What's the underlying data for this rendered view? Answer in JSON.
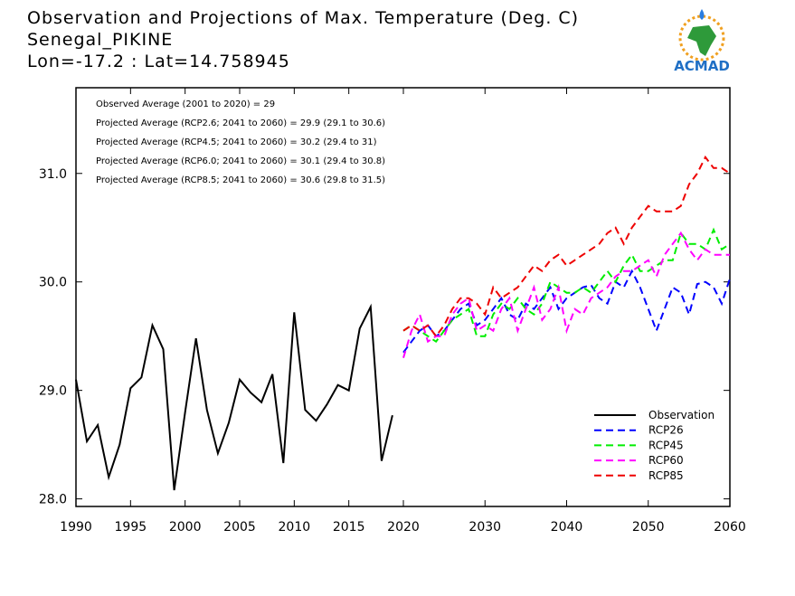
{
  "chart_data": {
    "type": "line",
    "title": "Observation and Projections of Max. Temperature (Deg. C)",
    "subtitle": "Senegal_PIKINE",
    "location": "Lon=-17.2 : Lat=14.758945",
    "annotations": [
      "Observed Average (2001 to 2020) = 29",
      "Projected Average (RCP2.6; 2041 to 2060) = 29.9 (29.1 to 30.6)",
      "Projected Average (RCP4.5; 2041 to 2060) = 30.2 (29.4 to 31)",
      "Projected Average (RCP6.0; 2041 to 2060) = 30.1 (29.4 to 30.8)",
      "Projected Average (RCP8.5; 2041 to 2060) = 30.6 (29.8 to 31.5)"
    ],
    "logo_text": "ACMAD",
    "x": [
      1990,
      1991,
      1992,
      1993,
      1994,
      1995,
      1996,
      1997,
      1998,
      1999,
      2000,
      2001,
      2002,
      2003,
      2004,
      2005,
      2006,
      2007,
      2008,
      2009,
      2010,
      2011,
      2012,
      2013,
      2014,
      2015,
      2016,
      2017,
      2018,
      2019,
      2020,
      2021,
      2022,
      2023,
      2024,
      2025,
      2026,
      2027,
      2028,
      2029,
      2030,
      2031,
      2032,
      2033,
      2034,
      2035,
      2036,
      2037,
      2038,
      2039,
      2040,
      2041,
      2042,
      2043,
      2044,
      2045,
      2046,
      2047,
      2048,
      2049,
      2050,
      2051,
      2052,
      2053,
      2054,
      2055,
      2056,
      2057,
      2058,
      2059,
      2060
    ],
    "series": [
      {
        "name": "Observation",
        "color": "#000000",
        "dashed": false,
        "values": [
          29.1,
          28.53,
          28.68,
          28.2,
          28.5,
          29.02,
          29.12,
          29.6,
          29.38,
          28.08,
          28.8,
          29.48,
          28.82,
          28.42,
          28.7,
          29.1,
          28.98,
          28.89,
          29.15,
          28.33,
          29.72,
          28.82,
          28.72,
          28.87,
          29.05,
          29.0,
          29.57,
          29.77,
          28.35,
          28.77,
          null,
          null,
          null,
          null,
          null,
          null,
          null,
          null,
          null,
          null,
          null,
          null,
          null,
          null,
          null,
          null,
          null,
          null,
          null,
          null,
          null,
          null,
          null,
          null,
          null,
          null,
          null,
          null,
          null,
          null,
          null,
          null,
          null,
          null,
          null,
          null,
          null,
          null,
          null,
          null,
          null
        ]
      },
      {
        "name": "RCP26",
        "color": "#0000ff",
        "dashed": true,
        "values": [
          null,
          null,
          null,
          null,
          null,
          null,
          null,
          null,
          null,
          null,
          null,
          null,
          null,
          null,
          null,
          null,
          null,
          null,
          null,
          null,
          null,
          null,
          null,
          null,
          null,
          null,
          null,
          null,
          null,
          null,
          29.35,
          29.45,
          29.55,
          29.6,
          29.5,
          29.55,
          29.65,
          29.75,
          29.8,
          29.6,
          29.65,
          29.75,
          29.85,
          29.7,
          29.65,
          29.8,
          29.75,
          29.85,
          29.95,
          29.75,
          29.85,
          29.9,
          29.95,
          29.97,
          29.85,
          29.8,
          30.0,
          29.95,
          30.1,
          29.95,
          29.75,
          29.55,
          29.75,
          29.95,
          29.9,
          29.7,
          29.98,
          30.0,
          29.95,
          29.8,
          30.03
        ]
      },
      {
        "name": "RCP45",
        "color": "#00ee00",
        "dashed": true,
        "values": [
          null,
          null,
          null,
          null,
          null,
          null,
          null,
          null,
          null,
          null,
          null,
          null,
          null,
          null,
          null,
          null,
          null,
          null,
          null,
          null,
          null,
          null,
          null,
          null,
          null,
          null,
          null,
          null,
          null,
          null,
          29.55,
          29.6,
          29.55,
          29.5,
          29.45,
          29.55,
          29.65,
          29.7,
          29.75,
          29.5,
          29.5,
          29.7,
          29.8,
          29.75,
          29.85,
          29.75,
          29.7,
          29.8,
          30.0,
          29.95,
          29.9,
          29.9,
          29.95,
          29.9,
          30.0,
          30.1,
          30.0,
          30.15,
          30.25,
          30.1,
          30.1,
          30.15,
          30.2,
          30.2,
          30.45,
          30.35,
          30.35,
          30.3,
          30.48,
          30.3,
          30.35
        ]
      },
      {
        "name": "RCP60",
        "color": "#ff00ff",
        "dashed": true,
        "values": [
          null,
          null,
          null,
          null,
          null,
          null,
          null,
          null,
          null,
          null,
          null,
          null,
          null,
          null,
          null,
          null,
          null,
          null,
          null,
          null,
          null,
          null,
          null,
          null,
          null,
          null,
          null,
          null,
          null,
          null,
          29.3,
          29.55,
          29.7,
          29.45,
          29.5,
          29.5,
          29.7,
          29.8,
          29.85,
          29.55,
          29.6,
          29.55,
          29.75,
          29.85,
          29.55,
          29.75,
          29.95,
          29.65,
          29.75,
          29.95,
          29.55,
          29.75,
          29.7,
          29.85,
          29.9,
          29.95,
          30.05,
          30.1,
          30.1,
          30.15,
          30.2,
          30.05,
          30.25,
          30.35,
          30.45,
          30.3,
          30.2,
          30.3,
          30.25,
          30.25,
          30.25
        ]
      },
      {
        "name": "RCP85",
        "color": "#ee0000",
        "dashed": true,
        "values": [
          null,
          null,
          null,
          null,
          null,
          null,
          null,
          null,
          null,
          null,
          null,
          null,
          null,
          null,
          null,
          null,
          null,
          null,
          null,
          null,
          null,
          null,
          null,
          null,
          null,
          null,
          null,
          null,
          null,
          null,
          29.55,
          29.6,
          29.55,
          29.6,
          29.5,
          29.6,
          29.75,
          29.85,
          29.85,
          29.8,
          29.7,
          29.95,
          29.85,
          29.9,
          29.95,
          30.05,
          30.15,
          30.1,
          30.2,
          30.25,
          30.15,
          30.2,
          30.25,
          30.3,
          30.35,
          30.45,
          30.5,
          30.35,
          30.5,
          30.6,
          30.7,
          30.65,
          30.65,
          30.65,
          30.7,
          30.9,
          31.0,
          31.15,
          31.05,
          31.05,
          31.0
        ]
      }
    ],
    "xlim": [
      1990,
      2060
    ],
    "x_break": 2020,
    "xticks": [
      1990,
      1995,
      2000,
      2005,
      2010,
      2015,
      2020,
      2030,
      2040,
      2050,
      2060
    ],
    "ylim": [
      27.93,
      31.79
    ],
    "yticks": [
      {
        "value": 28,
        "label": "28.0"
      },
      {
        "value": 29,
        "label": "29.0"
      },
      {
        "value": 30,
        "label": "30.0"
      },
      {
        "value": 31,
        "label": "31.0"
      }
    ],
    "legend": "lower right"
  }
}
